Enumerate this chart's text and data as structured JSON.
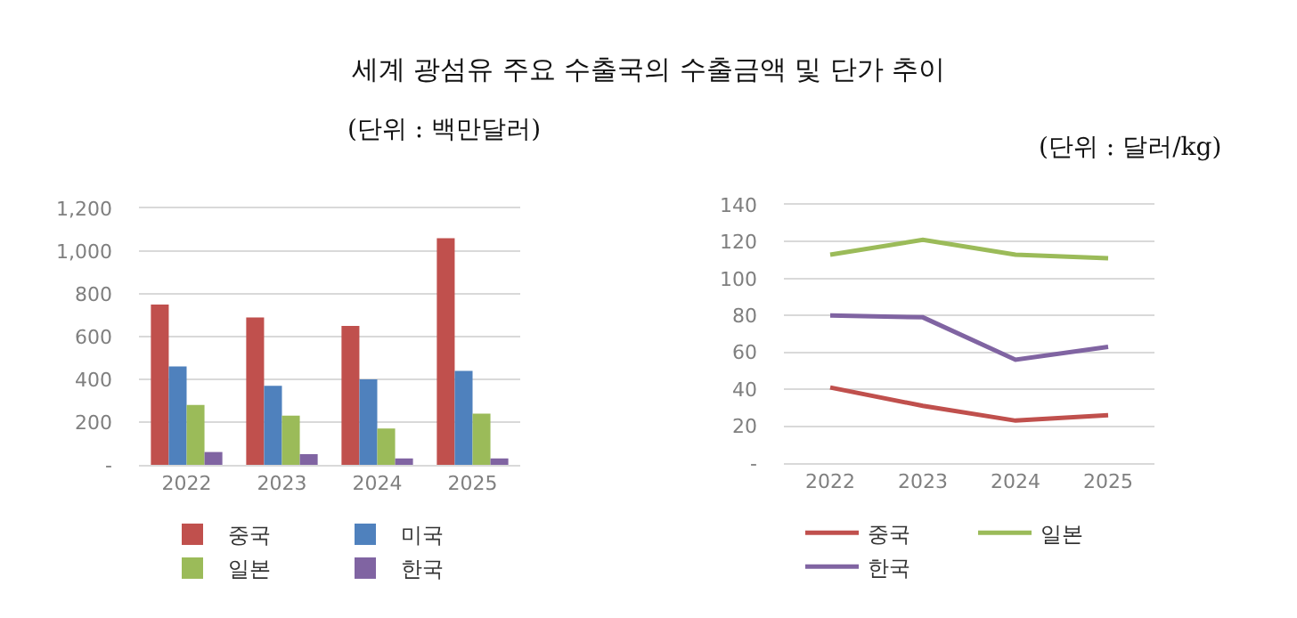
{
  "chart_data": [
    {
      "type": "bar",
      "title": "세계 광섬유 주요 수출국의 수출금액 및 단가 추이",
      "subtitle": "(단위 : 백만달러)",
      "categories": [
        "2022",
        "2023",
        "2024",
        "2025"
      ],
      "series": [
        {
          "name": "중국",
          "color": "#c0504d",
          "values": [
            750,
            690,
            650,
            1060
          ]
        },
        {
          "name": "미국",
          "color": "#4f81bd",
          "values": [
            460,
            370,
            400,
            440
          ]
        },
        {
          "name": "일본",
          "color": "#9bbb59",
          "values": [
            280,
            230,
            170,
            240
          ]
        },
        {
          "name": "한국",
          "color": "#8064a2",
          "values": [
            60,
            50,
            30,
            30
          ]
        }
      ],
      "ylim": [
        0,
        1200
      ],
      "yticks": [
        {
          "value": 0,
          "label": "-"
        },
        {
          "value": 200,
          "label": "200"
        },
        {
          "value": 400,
          "label": "400"
        },
        {
          "value": 600,
          "label": "600"
        },
        {
          "value": 800,
          "label": "800"
        },
        {
          "value": 1000,
          "label": "1,000"
        },
        {
          "value": 1200,
          "label": "1,200"
        }
      ],
      "grid": "y",
      "legend": "bottom"
    },
    {
      "type": "line",
      "subtitle": "(단위 : 달러/kg)",
      "categories": [
        "2022",
        "2023",
        "2024",
        "2025"
      ],
      "series": [
        {
          "name": "중국",
          "color": "#c0504d",
          "values": [
            41,
            31,
            23,
            26
          ]
        },
        {
          "name": "일본",
          "color": "#9bbb59",
          "values": [
            113,
            121,
            113,
            111
          ]
        },
        {
          "name": "한국",
          "color": "#8064a2",
          "values": [
            80,
            79,
            56,
            63
          ]
        }
      ],
      "ylim": [
        0,
        140
      ],
      "yticks": [
        {
          "value": 0,
          "label": "-"
        },
        20,
        40,
        60,
        80,
        100,
        120,
        140
      ],
      "grid": "y",
      "legend": "bottom",
      "marker": "none",
      "line_style": "solid"
    }
  ]
}
